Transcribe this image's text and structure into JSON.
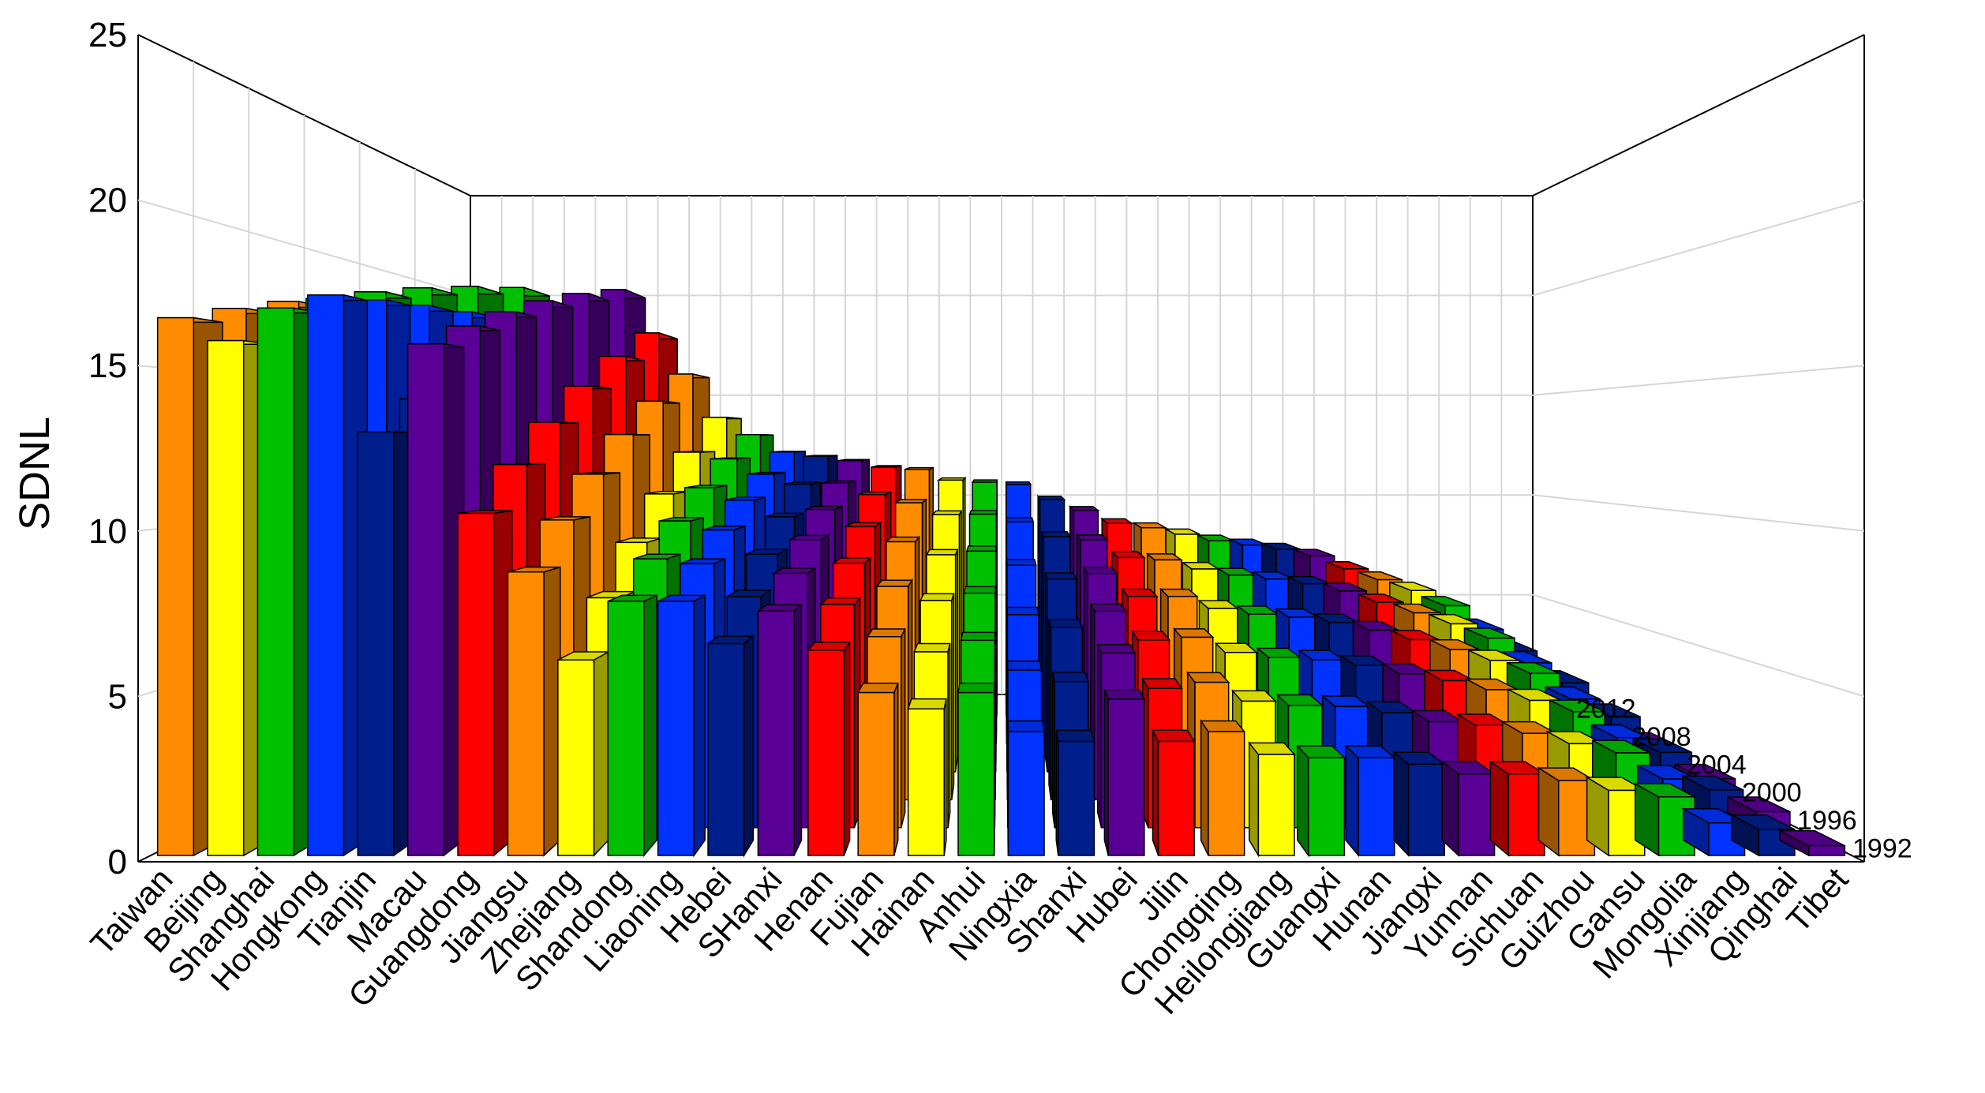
{
  "chart_data": {
    "type": "bar",
    "subtype": "3d-bar",
    "title": "",
    "ylabel": "SDNL",
    "xlabel": "",
    "ylim": [
      0,
      25
    ],
    "yticks": [
      "0",
      "5",
      "10",
      "15",
      "20",
      "25"
    ],
    "depth_labels": [
      "1992",
      "1996",
      "2000",
      "2004",
      "2008",
      "2012"
    ],
    "grid": true,
    "categories": [
      "Taiwan",
      "Beijing",
      "Shanghai",
      "Hongkong",
      "Tianjin",
      "Macau",
      "Guangdong",
      "Jiangsu",
      "Zhejiang",
      "Shandong",
      "Liaoning",
      "Hebei",
      "SHanxi",
      "Henan",
      "Fujian",
      "Hainan",
      "Anhui",
      "Ningxia",
      "Shanxi",
      "Hubei",
      "Jilin",
      "Chongqing",
      "Heilongjiang",
      "Guangxi",
      "Hunan",
      "Jiangxi",
      "Yunnan",
      "Sichuan",
      "Guizhou",
      "Gansu",
      "Mongolia",
      "Xinjiang",
      "Qinghai",
      "Tibet"
    ],
    "values_1992": [
      16.5,
      15.8,
      16.8,
      17.2,
      13.0,
      15.7,
      10.5,
      8.7,
      6.0,
      7.8,
      7.8,
      6.5,
      7.5,
      6.3,
      5.0,
      4.5,
      5.0,
      3.8,
      3.5,
      4.8,
      3.5,
      3.8,
      3.1,
      3.0,
      3.0,
      2.8,
      2.5,
      2.5,
      2.3,
      2.0,
      1.8,
      1.0,
      0.8,
      0.3
    ],
    "values_2012": [
      19.4,
      19.1,
      19.8,
      18.0,
      18.5,
      19.7,
      17.7,
      15.8,
      13.8,
      13.0,
      12.2,
      12.0,
      11.8,
      11.5,
      11.4,
      10.9,
      10.8,
      10.7,
      10.0,
      9.5,
      8.9,
      8.7,
      8.4,
      8.1,
      7.9,
      7.7,
      7.4,
      6.8,
      6.3,
      5.8,
      5.1,
      4.0,
      3.0,
      1.4
    ],
    "colors": [
      "#FF8C00",
      "#FFFF00",
      "#00C000",
      "#0033FF",
      "#001E8C",
      "#5A0096",
      "#FF0000"
    ]
  }
}
